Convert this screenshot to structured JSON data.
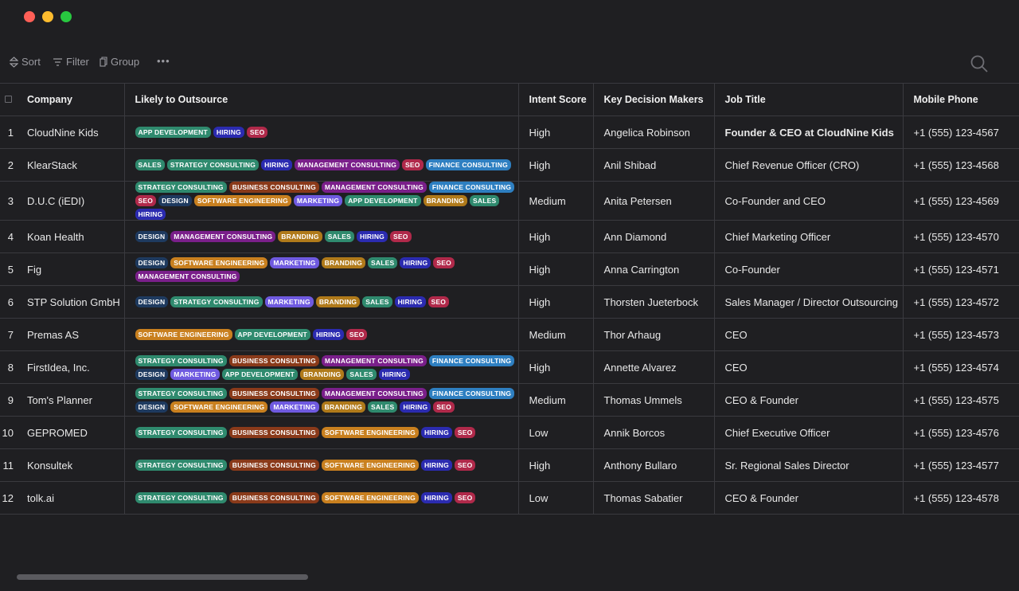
{
  "window": {
    "controls": [
      {
        "name": "close",
        "color": "#ff5f57"
      },
      {
        "name": "minimize",
        "color": "#febc2e"
      },
      {
        "name": "maximize",
        "color": "#28c840"
      }
    ]
  },
  "toolbar": {
    "sort_label": "Sort",
    "filter_label": "Filter",
    "group_label": "Group",
    "more_label": "•••"
  },
  "table": {
    "columns": [
      "Company",
      "Likely to Outsource",
      "Intent Score",
      "Key Decision Makers",
      "Job Title",
      "Mobile Phone"
    ],
    "rows": [
      {
        "num": "1",
        "company": "CloudNine Kids",
        "tags": [
          "APP DEVELOPMENT",
          "HIRING",
          "SEO"
        ],
        "intent": "High",
        "maker": "Angelica Robinson",
        "title": "Founder & CEO at CloudNine Kids",
        "phone": "+1 (555) 123-4567"
      },
      {
        "num": "2",
        "company": "KlearStack",
        "tags": [
          "SALES",
          "STRATEGY CONSULTING",
          "HIRING",
          "MANAGEMENT CONSULTING",
          "SEO",
          "FINANCE CONSULTING"
        ],
        "intent": "High",
        "maker": "Anil Shibad",
        "title": "Chief Revenue Officer (CRO)",
        "phone": "+1 (555) 123-4568"
      },
      {
        "num": "3",
        "company": "D.U.C (iEDI)",
        "tags": [
          "STRATEGY CONSULTING",
          "BUSINESS CONSULTING",
          "MANAGEMENT CONSULTING",
          "FINANCE CONSULTING",
          "SEO",
          "DESIGN",
          "SOFTWARE ENGINEERING",
          "MARKETING",
          "APP DEVELOPMENT",
          "BRANDING",
          "SALES",
          "HIRING"
        ],
        "intent": "Medium",
        "maker": "Anita Petersen",
        "title": "Co-Founder and CEO",
        "phone": "+1 (555) 123-4569"
      },
      {
        "num": "4",
        "company": "Koan Health",
        "tags": [
          "DESIGN",
          "MANAGEMENT CONSULTING",
          "BRANDING",
          "SALES",
          "HIRING",
          "SEO"
        ],
        "intent": "High",
        "maker": "Ann Diamond",
        "title": "Chief Marketing Officer",
        "phone": "+1 (555) 123-4570"
      },
      {
        "num": "5",
        "company": "Fig",
        "tags": [
          "DESIGN",
          "SOFTWARE ENGINEERING",
          "MARKETING",
          "BRANDING",
          "SALES",
          "HIRING",
          "SEO",
          "MANAGEMENT CONSULTING"
        ],
        "intent": "High",
        "maker": "Anna Carrington",
        "title": "Co-Founder",
        "phone": "+1 (555) 123-4571"
      },
      {
        "num": "6",
        "company": "STP Solution GmbH",
        "tags": [
          "DESIGN",
          "STRATEGY CONSULTING",
          "MARKETING",
          "BRANDING",
          "SALES",
          "HIRING",
          "SEO"
        ],
        "intent": "High",
        "maker": "Thorsten Jueterbock",
        "title": "Sales Manager / Director Outsourcing",
        "phone": "+1 (555) 123-4572"
      },
      {
        "num": "7",
        "company": "Premas AS",
        "tags": [
          "SOFTWARE ENGINEERING",
          "APP DEVELOPMENT",
          "HIRING",
          "SEO"
        ],
        "intent": "Medium",
        "maker": "Thor Arhaug",
        "title": "CEO",
        "phone": "+1 (555) 123-4573"
      },
      {
        "num": "8",
        "company": "FirstIdea, Inc.",
        "tags": [
          "STRATEGY CONSULTING",
          "BUSINESS CONSULTING",
          "MANAGEMENT CONSULTING",
          "FINANCE CONSULTING",
          "DESIGN",
          "MARKETING",
          "APP DEVELOPMENT",
          "BRANDING",
          "SALES",
          "HIRING"
        ],
        "intent": "High",
        "maker": "Annette Alvarez",
        "title": "CEO",
        "phone": "+1 (555) 123-4574"
      },
      {
        "num": "9",
        "company": "Tom's Planner",
        "tags": [
          "STRATEGY CONSULTING",
          "BUSINESS CONSULTING",
          "MANAGEMENT CONSULTING",
          "FINANCE CONSULTING",
          "DESIGN",
          "SOFTWARE ENGINEERING",
          "MARKETING",
          "BRANDING",
          "SALES",
          "HIRING",
          "SEO"
        ],
        "intent": "Medium",
        "maker": "Thomas Ummels",
        "title": "CEO & Founder",
        "phone": "+1 (555) 123-4575"
      },
      {
        "num": "10",
        "company": "GEPROMED",
        "tags": [
          "STRATEGY CONSULTING",
          "BUSINESS CONSULTING",
          "SOFTWARE ENGINEERING",
          "HIRING",
          "SEO"
        ],
        "intent": "Low",
        "maker": "Annik Borcos",
        "title": "Chief Executive Officer",
        "phone": "+1 (555) 123-4576"
      },
      {
        "num": "11",
        "company": "Konsultek",
        "tags": [
          "STRATEGY CONSULTING",
          "BUSINESS CONSULTING",
          "SOFTWARE ENGINEERING",
          "HIRING",
          "SEO"
        ],
        "intent": "High",
        "maker": "Anthony Bullaro",
        "title": "Sr. Regional Sales Director",
        "phone": "+1 (555) 123-4577"
      },
      {
        "num": "12",
        "company": "tolk.ai",
        "tags": [
          "STRATEGY CONSULTING",
          "BUSINESS CONSULTING",
          "SOFTWARE ENGINEERING",
          "HIRING",
          "SEO"
        ],
        "intent": "Low",
        "maker": "Thomas Sabatier",
        "title": "CEO & Founder",
        "phone": "+1 (555) 123-4578"
      }
    ]
  },
  "tag_colors": {
    "APP DEVELOPMENT": "#2f8a6e",
    "HIRING": "#2b2bb0",
    "SEO": "#b0294a",
    "SALES": "#2f8a6e",
    "STRATEGY CONSULTING": "#2f8a6e",
    "MANAGEMENT CONSULTING": "#7a1f8a",
    "FINANCE CONSULTING": "#2e7fc1",
    "BUSINESS CONSULTING": "#8a3a1a",
    "DESIGN": "#1e3a5f",
    "SOFTWARE ENGINEERING": "#c9801f",
    "MARKETING": "#6f5ae0",
    "BRANDING": "#b07a1a"
  }
}
